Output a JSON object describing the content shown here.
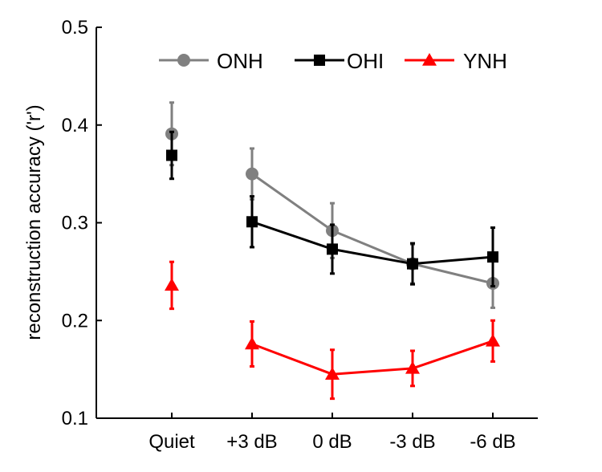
{
  "chart_data": {
    "type": "line",
    "title": "",
    "xlabel": "",
    "ylabel": "reconstruction accuracy ('r')",
    "categories": [
      "Quiet",
      "+3 dB",
      "0 dB",
      "-3 dB",
      "-6 dB"
    ],
    "ylim": [
      0.1,
      0.5
    ],
    "yticks": [
      "0.1",
      "0.2",
      "0.3",
      "0.4",
      "0.5"
    ],
    "grid": false,
    "legend_position": "top",
    "series": [
      {
        "name": "ONH",
        "color": "#808080",
        "marker": "circle",
        "values": [
          0.391,
          0.35,
          0.292,
          0.258,
          0.238
        ],
        "errors": [
          0.032,
          0.026,
          0.028,
          0.02,
          0.025
        ],
        "connect_from": 1
      },
      {
        "name": "OHI",
        "color": "#000000",
        "marker": "square",
        "values": [
          0.369,
          0.301,
          0.273,
          0.258,
          0.265
        ],
        "errors": [
          0.024,
          0.026,
          0.025,
          0.021,
          0.03
        ],
        "connect_from": 1
      },
      {
        "name": "YNH",
        "color": "#ff0000",
        "marker": "triangle",
        "values": [
          0.236,
          0.176,
          0.145,
          0.151,
          0.179
        ],
        "errors": [
          0.024,
          0.023,
          0.025,
          0.018,
          0.021
        ],
        "connect_from": 1
      }
    ]
  }
}
